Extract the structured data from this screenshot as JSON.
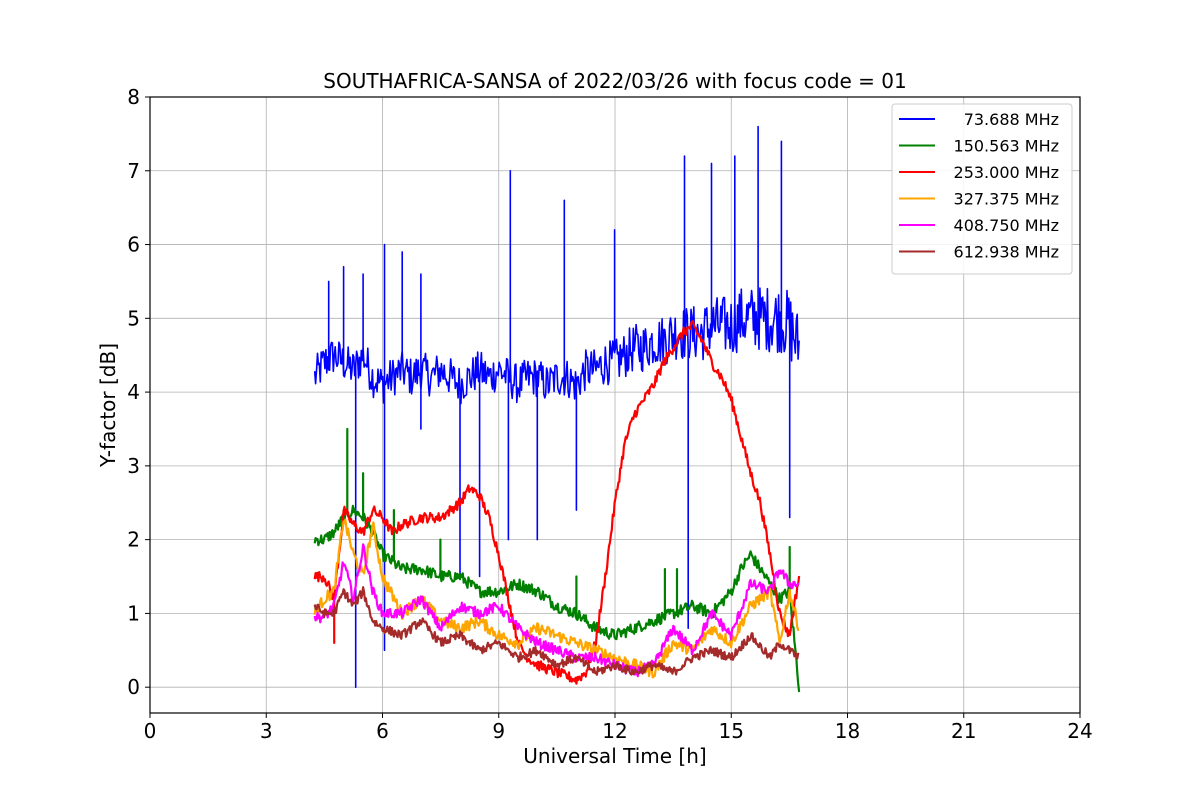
{
  "chart_data": {
    "type": "line",
    "title": "SOUTHAFRICA-SANSA of 2022/03/26 with focus code = 01",
    "xlabel": "Universal Time [h]",
    "ylabel": "Y-factor [dB]",
    "xlim": [
      0,
      24
    ],
    "ylim": [
      -0.35,
      8
    ],
    "xticks": [
      0,
      3,
      6,
      9,
      12,
      15,
      18,
      21,
      24
    ],
    "yticks": [
      0,
      1,
      2,
      3,
      4,
      5,
      6,
      7,
      8
    ],
    "grid": true,
    "legend_position": "top-right",
    "series": [
      {
        "name": "73.688 MHz",
        "color": "#0000ff",
        "x": [
          4.25,
          4.5,
          4.75,
          5.0,
          5.25,
          5.5,
          5.75,
          6.0,
          6.25,
          6.5,
          6.75,
          7.0,
          7.25,
          7.5,
          7.75,
          8.0,
          8.25,
          8.5,
          8.75,
          9.0,
          9.25,
          9.5,
          9.75,
          10.0,
          10.25,
          10.5,
          10.75,
          11.0,
          11.25,
          11.5,
          11.75,
          12.0,
          12.25,
          12.5,
          12.75,
          13.0,
          13.25,
          13.5,
          13.75,
          14.0,
          14.25,
          14.5,
          14.75,
          15.0,
          15.25,
          15.5,
          15.75,
          16.0,
          16.25,
          16.5,
          16.75
        ],
        "values": [
          4.2,
          4.4,
          4.5,
          4.4,
          4.3,
          4.5,
          4.2,
          4.1,
          4.2,
          4.3,
          4.2,
          4.3,
          4.2,
          4.3,
          4.2,
          4.1,
          4.2,
          4.3,
          4.2,
          4.3,
          4.2,
          4.1,
          4.2,
          4.2,
          4.1,
          4.2,
          4.2,
          4.1,
          4.3,
          4.3,
          4.4,
          4.4,
          4.5,
          4.6,
          4.6,
          4.7,
          4.7,
          4.8,
          4.8,
          4.8,
          4.8,
          4.9,
          4.9,
          4.9,
          5.0,
          5.0,
          5.0,
          5.0,
          5.0,
          4.9,
          4.6
        ],
        "spikes_up": [
          [
            4.6,
            5.5
          ],
          [
            5.0,
            5.7
          ],
          [
            5.5,
            5.6
          ],
          [
            6.05,
            6.0
          ],
          [
            6.5,
            5.9
          ],
          [
            7.0,
            5.6
          ],
          [
            9.3,
            7.0
          ],
          [
            10.7,
            6.6
          ],
          [
            12.0,
            6.2
          ],
          [
            13.8,
            7.2
          ],
          [
            14.5,
            7.1
          ],
          [
            15.1,
            7.2
          ],
          [
            15.7,
            7.6
          ],
          [
            16.3,
            7.4
          ]
        ],
        "spikes_down": [
          [
            5.3,
            0.0
          ],
          [
            6.05,
            0.5
          ],
          [
            7.0,
            3.5
          ],
          [
            8.0,
            1.5
          ],
          [
            8.5,
            1.5
          ],
          [
            9.25,
            2.0
          ],
          [
            10.0,
            2.0
          ],
          [
            11.0,
            2.4
          ],
          [
            13.9,
            0.8
          ],
          [
            16.5,
            2.3
          ]
        ]
      },
      {
        "name": "150.563 MHz",
        "color": "#008000",
        "x": [
          4.25,
          4.5,
          4.75,
          5.0,
          5.25,
          5.5,
          5.75,
          6.0,
          6.5,
          7.0,
          7.5,
          8.0,
          8.5,
          9.0,
          9.5,
          10.0,
          10.5,
          11.0,
          11.5,
          12.0,
          12.5,
          13.0,
          13.5,
          14.0,
          14.5,
          15.0,
          15.25,
          15.5,
          15.75,
          16.0,
          16.25,
          16.5,
          16.75
        ],
        "values": [
          2.0,
          2.0,
          2.1,
          2.3,
          2.4,
          2.3,
          2.1,
          1.8,
          1.6,
          1.6,
          1.5,
          1.5,
          1.3,
          1.3,
          1.4,
          1.3,
          1.1,
          1.0,
          0.8,
          0.7,
          0.8,
          0.9,
          1.0,
          1.1,
          1.0,
          1.3,
          1.6,
          1.8,
          1.6,
          1.4,
          1.2,
          1.3,
          0.0
        ],
        "spikes_up": [
          [
            5.1,
            3.5
          ],
          [
            5.5,
            2.9
          ],
          [
            6.3,
            2.4
          ],
          [
            7.5,
            2.0
          ],
          [
            11.0,
            1.5
          ],
          [
            13.3,
            1.6
          ],
          [
            13.6,
            1.6
          ],
          [
            16.5,
            1.9
          ]
        ],
        "spikes_down": []
      },
      {
        "name": "253.000 MHz",
        "color": "#ff0000",
        "x": [
          4.25,
          4.5,
          4.75,
          5.0,
          5.25,
          5.5,
          5.75,
          6.0,
          6.25,
          6.5,
          7.0,
          7.5,
          8.0,
          8.25,
          8.5,
          8.75,
          9.0,
          9.25,
          9.5,
          9.75,
          10.0,
          10.5,
          11.0,
          11.25,
          11.5,
          11.75,
          12.0,
          12.25,
          12.5,
          12.75,
          13.0,
          13.25,
          13.5,
          13.75,
          14.0,
          14.25,
          14.5,
          14.75,
          15.0,
          15.25,
          15.5,
          15.75,
          16.0,
          16.25,
          16.5,
          16.75
        ],
        "values": [
          1.5,
          1.5,
          1.2,
          2.4,
          2.2,
          2.1,
          2.4,
          2.3,
          2.1,
          2.2,
          2.3,
          2.3,
          2.5,
          2.7,
          2.6,
          2.3,
          1.8,
          1.2,
          0.6,
          0.4,
          0.3,
          0.2,
          0.1,
          0.2,
          0.6,
          1.5,
          2.5,
          3.3,
          3.7,
          3.9,
          4.1,
          4.4,
          4.6,
          4.8,
          4.9,
          4.7,
          4.4,
          4.2,
          3.9,
          3.4,
          2.9,
          2.5,
          1.8,
          1.0,
          0.7,
          1.5
        ],
        "spikes_up": [],
        "spikes_down": [
          [
            4.75,
            0.6
          ]
        ]
      },
      {
        "name": "327.375 MHz",
        "color": "#ffa500",
        "x": [
          4.25,
          4.5,
          4.75,
          5.0,
          5.25,
          5.5,
          5.75,
          6.0,
          6.5,
          7.0,
          7.5,
          8.0,
          8.5,
          9.0,
          9.5,
          10.0,
          10.5,
          11.0,
          11.5,
          12.0,
          12.5,
          13.0,
          13.5,
          14.0,
          14.5,
          15.0,
          15.5,
          16.0,
          16.25,
          16.5,
          16.75
        ],
        "values": [
          1.0,
          1.2,
          1.3,
          2.3,
          1.8,
          1.5,
          2.2,
          1.5,
          1.0,
          1.2,
          0.9,
          0.8,
          0.9,
          0.7,
          0.6,
          0.8,
          0.7,
          0.6,
          0.5,
          0.4,
          0.3,
          0.2,
          0.6,
          0.5,
          0.8,
          0.6,
          1.1,
          1.3,
          0.6,
          1.3,
          0.8
        ],
        "spikes_up": [],
        "spikes_down": []
      },
      {
        "name": "408.750 MHz",
        "color": "#ff00ff",
        "x": [
          4.25,
          4.5,
          4.75,
          5.0,
          5.25,
          5.5,
          5.75,
          6.0,
          6.5,
          7.0,
          7.5,
          8.0,
          8.5,
          9.0,
          9.5,
          10.0,
          10.5,
          11.0,
          11.5,
          12.0,
          12.5,
          13.0,
          13.5,
          14.0,
          14.5,
          15.0,
          15.5,
          16.0,
          16.25,
          16.5,
          16.75
        ],
        "values": [
          0.95,
          0.95,
          1.1,
          1.7,
          1.2,
          1.9,
          1.3,
          1.0,
          1.0,
          1.2,
          0.8,
          1.1,
          1.0,
          1.1,
          0.8,
          0.6,
          0.5,
          0.4,
          0.4,
          0.3,
          0.2,
          0.3,
          0.8,
          0.5,
          1.0,
          0.7,
          1.4,
          1.3,
          1.6,
          1.4,
          1.4
        ],
        "spikes_up": [],
        "spikes_down": []
      },
      {
        "name": "612.938 MHz",
        "color": "#a52a2a",
        "x": [
          4.25,
          4.5,
          4.75,
          5.0,
          5.25,
          5.5,
          5.75,
          6.0,
          6.5,
          7.0,
          7.5,
          8.0,
          8.5,
          9.0,
          9.5,
          10.0,
          10.5,
          11.0,
          11.5,
          12.0,
          12.5,
          13.0,
          13.5,
          14.0,
          14.5,
          15.0,
          15.5,
          16.0,
          16.25,
          16.5,
          16.75
        ],
        "values": [
          1.1,
          1.0,
          1.0,
          1.3,
          1.1,
          1.3,
          0.9,
          0.8,
          0.7,
          0.9,
          0.6,
          0.7,
          0.5,
          0.6,
          0.4,
          0.5,
          0.3,
          0.4,
          0.2,
          0.3,
          0.2,
          0.3,
          0.2,
          0.4,
          0.5,
          0.4,
          0.7,
          0.4,
          0.6,
          0.5,
          0.4
        ],
        "spikes_up": [],
        "spikes_down": []
      }
    ]
  }
}
